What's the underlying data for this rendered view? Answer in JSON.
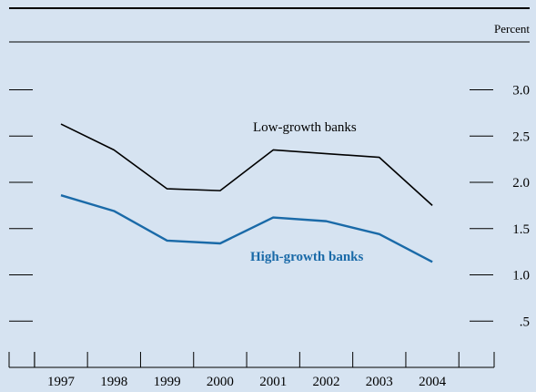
{
  "chart_data": {
    "type": "line",
    "unit_label": "Percent",
    "x": [
      "1997",
      "1998",
      "1999",
      "2000",
      "2001",
      "2002",
      "2003",
      "2004"
    ],
    "y_ticks": [
      {
        "value": 3.0,
        "label": "3.0"
      },
      {
        "value": 2.5,
        "label": "2.5"
      },
      {
        "value": 2.0,
        "label": "2.0"
      },
      {
        "value": 1.5,
        "label": "1.5"
      },
      {
        "value": 1.0,
        "label": "1.0"
      },
      {
        "value": 0.5,
        "label": ".5"
      }
    ],
    "ylim": [
      0,
      3.5
    ],
    "series": [
      {
        "name": "Low-growth banks",
        "color": "#000000",
        "values": [
          2.63,
          2.35,
          1.93,
          1.91,
          2.35,
          2.31,
          2.27,
          1.75
        ]
      },
      {
        "name": "High-growth banks",
        "color": "#1a6aa8",
        "values": [
          1.86,
          1.69,
          1.37,
          1.34,
          1.62,
          1.58,
          1.44,
          1.14
        ]
      }
    ]
  }
}
